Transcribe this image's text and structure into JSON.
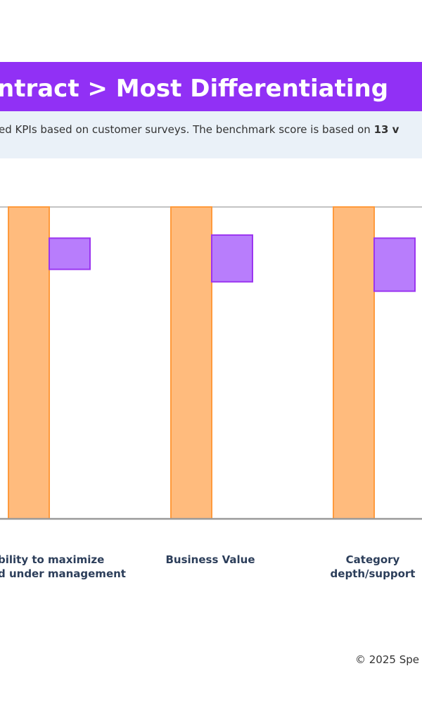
{
  "header": {
    "title": "ntract > Most Differentiating",
    "subtitle": "ed KPIs based on customer surveys. The benchmark score is based on ",
    "subtitle_bold": "13 v"
  },
  "chart_data": {
    "type": "bar",
    "categories": [
      [
        "bility to maximize",
        "d under management"
      ],
      [
        "Business Value"
      ],
      [
        "Category",
        "depth/support"
      ]
    ],
    "ylim": [
      0,
      100
    ],
    "series": [
      {
        "color": "#ffbb7d",
        "values": [
          100,
          100,
          100
        ]
      },
      {
        "color": "#b87dfc",
        "low": [
          80,
          76,
          73
        ],
        "high": [
          90,
          91,
          90
        ]
      }
    ]
  },
  "footer": {
    "text": "© 2025 Spe"
  }
}
